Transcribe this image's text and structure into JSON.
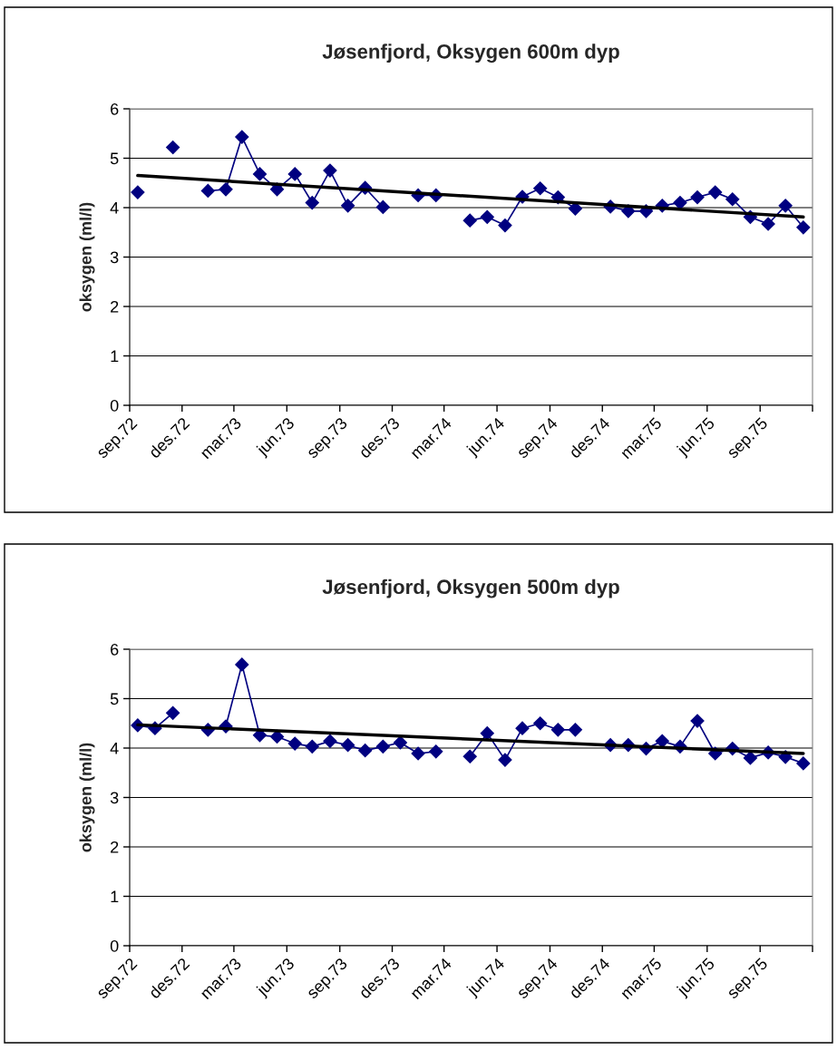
{
  "chart_data": [
    {
      "type": "line",
      "title": "Jøsenfjord, Oksygen 600m dyp",
      "ylabel": "oksygen (ml/l)",
      "x": [
        "1972-09-15",
        "1972-10-15",
        "1972-11-15",
        "1972-12-15",
        "1973-01-15",
        "1973-02-15",
        "1973-03-15",
        "1973-04-15",
        "1973-05-15",
        "1973-06-15",
        "1973-07-15",
        "1973-08-15",
        "1973-09-15",
        "1973-10-15",
        "1973-11-15",
        "1973-12-15",
        "1974-01-15",
        "1974-02-15",
        "1974-03-15",
        "1974-04-15",
        "1974-05-15",
        "1974-06-15",
        "1974-07-15",
        "1974-08-15",
        "1974-09-15",
        "1974-10-15",
        "1974-11-15",
        "1974-12-15",
        "1975-01-15",
        "1975-02-15",
        "1975-03-15",
        "1975-04-15",
        "1975-05-15",
        "1975-06-15",
        "1975-07-15",
        "1975-08-15",
        "1975-09-15",
        "1975-10-15",
        "1975-11-15"
      ],
      "series": [
        {
          "color": "#000080",
          "marker": "diamond",
          "line_style": "solid",
          "values": [
            4.31,
            null,
            5.22,
            null,
            4.34,
            4.37,
            5.43,
            4.68,
            4.37,
            4.68,
            4.1,
            4.75,
            4.04,
            4.4,
            4.01,
            null,
            4.25,
            4.25,
            null,
            3.74,
            3.81,
            3.64,
            4.22,
            4.39,
            4.21,
            3.98,
            null,
            4.02,
            3.93,
            3.93,
            4.04,
            4.1,
            4.21,
            4.31,
            4.17,
            3.81,
            3.67,
            4.04,
            3.6
          ]
        },
        {
          "type": "line",
          "color": "#000000",
          "marker": "none",
          "line_style": "solid",
          "x": [
            "1972-09-15",
            "1975-11-15"
          ],
          "values": [
            4.65,
            3.81
          ]
        }
      ],
      "xlim": [
        "1972-09-01",
        "1975-12-01"
      ],
      "xticks": [
        {
          "value": "1972-09-01",
          "label": "sep.72"
        },
        {
          "value": "1972-12-01",
          "label": "des.72"
        },
        {
          "value": "1973-03-01",
          "label": "mar.73"
        },
        {
          "value": "1973-06-01",
          "label": "jun.73"
        },
        {
          "value": "1973-09-01",
          "label": "sep.73"
        },
        {
          "value": "1973-12-01",
          "label": "des.73"
        },
        {
          "value": "1974-03-01",
          "label": "mar.74"
        },
        {
          "value": "1974-06-01",
          "label": "jun.74"
        },
        {
          "value": "1974-09-01",
          "label": "sep.74"
        },
        {
          "value": "1974-12-01",
          "label": "des.74"
        },
        {
          "value": "1975-03-01",
          "label": "mar.75"
        },
        {
          "value": "1975-06-01",
          "label": "jun.75"
        },
        {
          "value": "1975-09-01",
          "label": "sep.75"
        },
        {
          "value": "1975-12-01",
          "label": null
        }
      ],
      "ylim": [
        0,
        6
      ],
      "yticks": [
        0,
        1,
        2,
        3,
        4,
        5,
        6
      ],
      "grid": "y",
      "legend": false
    },
    {
      "type": "line",
      "title": "Jøsenfjord, Oksygen 500m dyp",
      "ylabel": "oksygen (ml/l)",
      "x": [
        "1972-09-15",
        "1972-10-15",
        "1972-11-15",
        "1972-12-15",
        "1973-01-15",
        "1973-02-15",
        "1973-03-15",
        "1973-04-15",
        "1973-05-15",
        "1973-06-15",
        "1973-07-15",
        "1973-08-15",
        "1973-09-15",
        "1973-10-15",
        "1973-11-15",
        "1973-12-15",
        "1974-01-15",
        "1974-02-15",
        "1974-03-15",
        "1974-04-15",
        "1974-05-15",
        "1974-06-15",
        "1974-07-15",
        "1974-08-15",
        "1974-09-15",
        "1974-10-15",
        "1974-11-15",
        "1974-12-15",
        "1975-01-15",
        "1975-02-15",
        "1975-03-15",
        "1975-04-15",
        "1975-05-15",
        "1975-06-15",
        "1975-07-15",
        "1975-08-15",
        "1975-09-15",
        "1975-10-15",
        "1975-11-15"
      ],
      "series": [
        {
          "color": "#000080",
          "marker": "diamond",
          "line_style": "solid",
          "values": [
            4.46,
            4.4,
            4.71,
            null,
            4.37,
            4.44,
            5.69,
            4.26,
            4.23,
            4.09,
            4.03,
            4.14,
            4.06,
            3.95,
            4.03,
            4.11,
            3.89,
            3.93,
            null,
            3.83,
            4.3,
            3.76,
            4.4,
            4.5,
            4.37,
            4.37,
            null,
            4.06,
            4.06,
            3.99,
            4.14,
            4.03,
            4.55,
            3.89,
            3.99,
            3.8,
            3.91,
            3.82,
            3.69
          ]
        },
        {
          "type": "line",
          "color": "#000000",
          "marker": "none",
          "line_style": "solid",
          "x": [
            "1972-09-15",
            "1975-11-15"
          ],
          "values": [
            4.47,
            3.89
          ]
        }
      ],
      "xlim": [
        "1972-09-01",
        "1975-12-01"
      ],
      "xticks": [
        {
          "value": "1972-09-01",
          "label": "sep.72"
        },
        {
          "value": "1972-12-01",
          "label": "des.72"
        },
        {
          "value": "1973-03-01",
          "label": "mar.73"
        },
        {
          "value": "1973-06-01",
          "label": "jun.73"
        },
        {
          "value": "1973-09-01",
          "label": "sep.73"
        },
        {
          "value": "1973-12-01",
          "label": "des.73"
        },
        {
          "value": "1974-03-01",
          "label": "mar.74"
        },
        {
          "value": "1974-06-01",
          "label": "jun.74"
        },
        {
          "value": "1974-09-01",
          "label": "sep.74"
        },
        {
          "value": "1974-12-01",
          "label": "des.74"
        },
        {
          "value": "1975-03-01",
          "label": "mar.75"
        },
        {
          "value": "1975-06-01",
          "label": "jun.75"
        },
        {
          "value": "1975-09-01",
          "label": "sep.75"
        },
        {
          "value": "1975-12-01",
          "label": null
        }
      ],
      "ylim": [
        0,
        6
      ],
      "yticks": [
        0,
        1,
        2,
        3,
        4,
        5,
        6
      ],
      "grid": "y",
      "legend": false
    }
  ]
}
